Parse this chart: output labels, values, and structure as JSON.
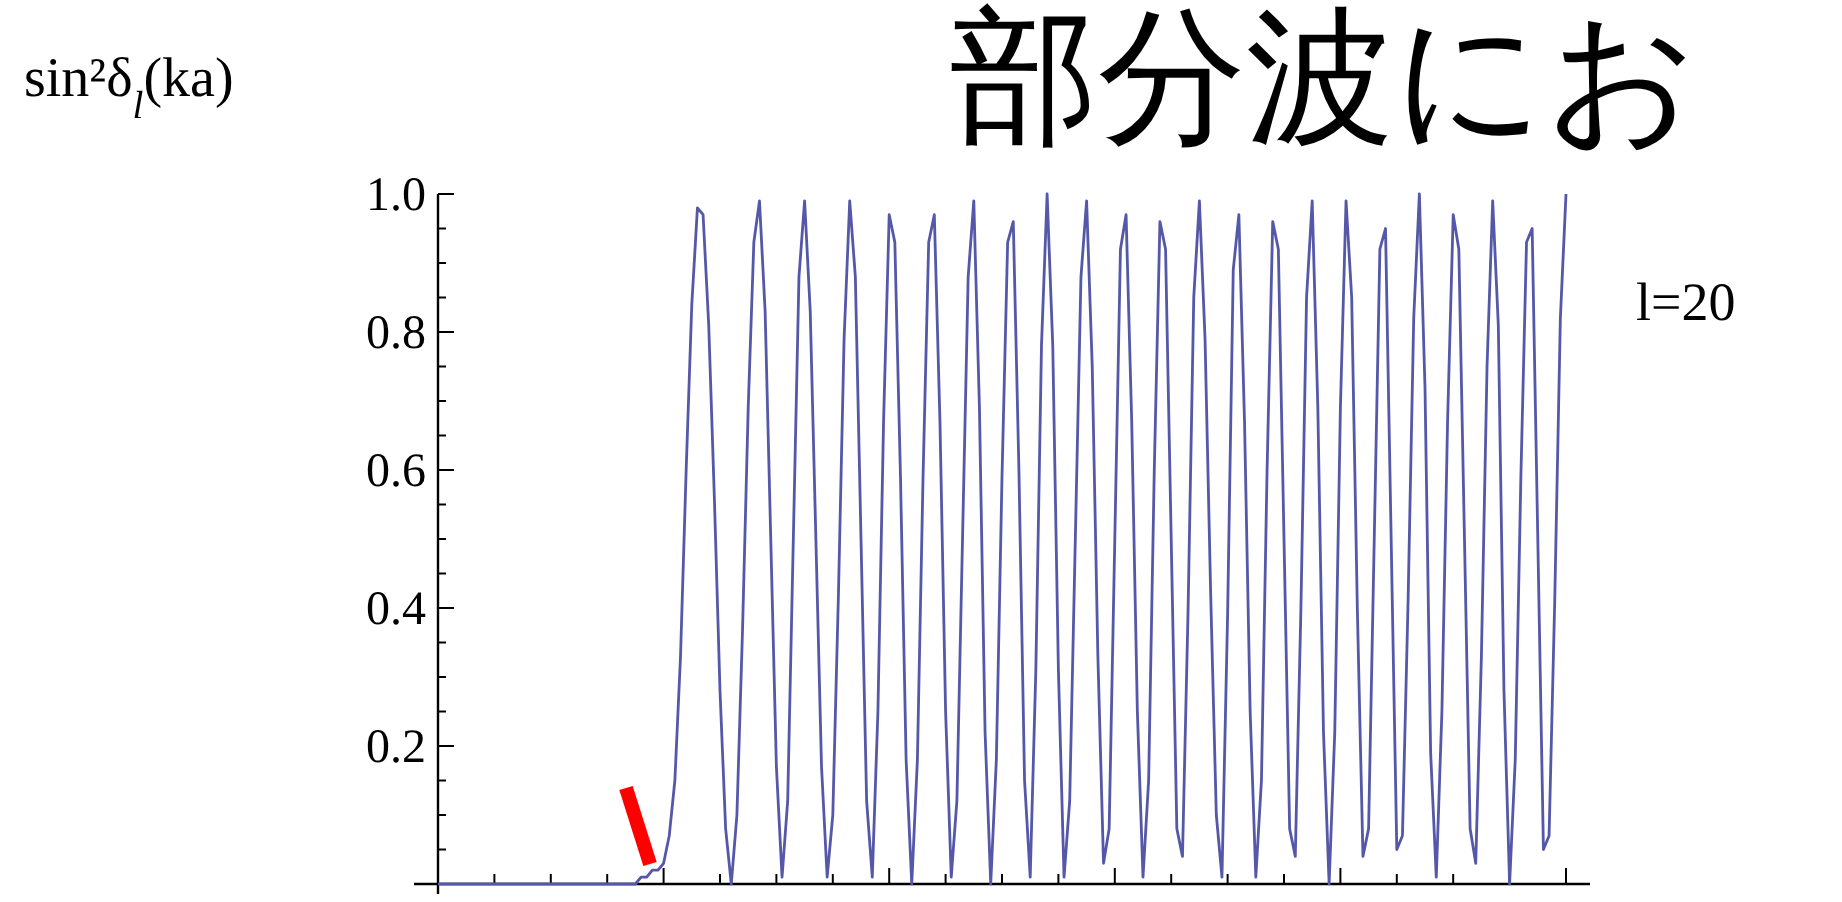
{
  "chart_data": {
    "type": "line",
    "title": "部分波にお",
    "ylabel": "sin²δ$_{l}$(ka)",
    "annotations": [
      "l=20"
    ],
    "categories": [
      null,
      null,
      null,
      null,
      null,
      null,
      null,
      null,
      null,
      null,
      null,
      null,
      null,
      null,
      null,
      null,
      null,
      null,
      null,
      null,
      null,
      null,
      null,
      null,
      null,
      null,
      null,
      null,
      null,
      null,
      null,
      null,
      null,
      null,
      null,
      null,
      null,
      null,
      null,
      null,
      null,
      null,
      null,
      null,
      null,
      null,
      null,
      null,
      null,
      null,
      null,
      null,
      null,
      null,
      null,
      null,
      null,
      null,
      null,
      null,
      null,
      null,
      null,
      null,
      null,
      null,
      null,
      null,
      null,
      null,
      null,
      null,
      null,
      null,
      null,
      null,
      null,
      null,
      null,
      null,
      null,
      null,
      null,
      null,
      null,
      null,
      null,
      null,
      null,
      null,
      null,
      null,
      null,
      null,
      null,
      null,
      null,
      null,
      null,
      null,
      null,
      null,
      null,
      null,
      null,
      null,
      null,
      null,
      null,
      null,
      null,
      null,
      null,
      null,
      null,
      null,
      null,
      null,
      null,
      null,
      null,
      null,
      null,
      null,
      null,
      null,
      null,
      null,
      null,
      null,
      null,
      null,
      null,
      null,
      null,
      null,
      null,
      null,
      null,
      null,
      null,
      null,
      null,
      null,
      null,
      null,
      null,
      null,
      null,
      null,
      null,
      null,
      null,
      null,
      null,
      null,
      null,
      null,
      null,
      null,
      null,
      null,
      null,
      null,
      null,
      null,
      null,
      null,
      null,
      null,
      null,
      null,
      null,
      null,
      null,
      null,
      null,
      null,
      null,
      null,
      null,
      null,
      null,
      null,
      null,
      null,
      null,
      null,
      null,
      null,
      null,
      null,
      null,
      null,
      null,
      null,
      null,
      null,
      null,
      null,
      null
    ],
    "series": [
      {
        "color": "#5558a8",
        "values": [
          0,
          0,
          0,
          0,
          0,
          0,
          0,
          0,
          0,
          0,
          0,
          0,
          0,
          0,
          0,
          0,
          0,
          0,
          0,
          0,
          0,
          0,
          0,
          0,
          0,
          0,
          0,
          0,
          0,
          0,
          0,
          0,
          0,
          0,
          0,
          0,
          0.01,
          0.01,
          0.02,
          0.02,
          0.03,
          0.07,
          0.15,
          0.33,
          0.6,
          0.84,
          0.98,
          0.97,
          0.81,
          0.56,
          0.28,
          0.08,
          0,
          0.1,
          0.37,
          0.69,
          0.93,
          0.99,
          0.83,
          0.5,
          0.17,
          0.01,
          0.12,
          0.5,
          0.88,
          0.99,
          0.83,
          0.5,
          0.17,
          0.01,
          0.1,
          0.42,
          0.79,
          0.99,
          0.88,
          0.5,
          0.12,
          0.01,
          0.25,
          0.67,
          0.97,
          0.93,
          0.59,
          0.18,
          0,
          0.18,
          0.59,
          0.93,
          0.97,
          0.67,
          0.25,
          0.01,
          0.12,
          0.5,
          0.88,
          0.99,
          0.69,
          0.22,
          0,
          0.18,
          0.59,
          0.93,
          0.96,
          0.6,
          0.15,
          0.01,
          0.31,
          0.78,
          1,
          0.78,
          0.31,
          0.01,
          0.12,
          0.5,
          0.88,
          0.99,
          0.75,
          0.33,
          0.03,
          0.08,
          0.5,
          0.92,
          0.97,
          0.67,
          0.25,
          0.01,
          0.15,
          0.6,
          0.96,
          0.92,
          0.5,
          0.08,
          0.04,
          0.4,
          0.85,
          0.99,
          0.79,
          0.42,
          0.1,
          0.01,
          0.39,
          0.89,
          0.97,
          0.67,
          0.25,
          0.01,
          0.15,
          0.6,
          0.96,
          0.92,
          0.5,
          0.08,
          0.04,
          0.4,
          0.85,
          0.99,
          0.69,
          0.22,
          0,
          0.22,
          0.69,
          0.99,
          0.85,
          0.4,
          0.04,
          0.08,
          0.5,
          0.92,
          0.95,
          0.5,
          0.05,
          0.07,
          0.41,
          0.82,
          1,
          0.72,
          0.19,
          0.01,
          0.25,
          0.67,
          0.97,
          0.92,
          0.5,
          0.08,
          0.03,
          0.33,
          0.75,
          0.99,
          0.81,
          0.28,
          0,
          0.18,
          0.59,
          0.93,
          0.95,
          0.5,
          0.05,
          0.07,
          0.41,
          0.82,
          1
        ]
      }
    ],
    "ylim": [
      0,
      1
    ],
    "yticks": [
      {
        "value": 0.05,
        "label": null
      },
      {
        "value": 0.1,
        "label": null
      },
      {
        "value": 0.15,
        "label": null
      },
      0.2,
      {
        "value": 0.25,
        "label": null
      },
      {
        "value": 0.3,
        "label": null
      },
      {
        "value": 0.35,
        "label": null
      },
      0.4,
      {
        "value": 0.45,
        "label": null
      },
      {
        "value": 0.5,
        "label": null
      },
      {
        "value": 0.55,
        "label": null
      },
      0.6,
      {
        "value": 0.65,
        "label": null
      },
      {
        "value": 0.7,
        "label": null
      },
      {
        "value": 0.75,
        "label": null
      },
      0.8,
      {
        "value": 0.85,
        "label": null
      },
      {
        "value": 0.9,
        "label": null
      },
      {
        "value": 0.95,
        "label": null
      },
      {
        "value": 1,
        "label": "1.0"
      }
    ],
    "tick_labels": "y"
  }
}
